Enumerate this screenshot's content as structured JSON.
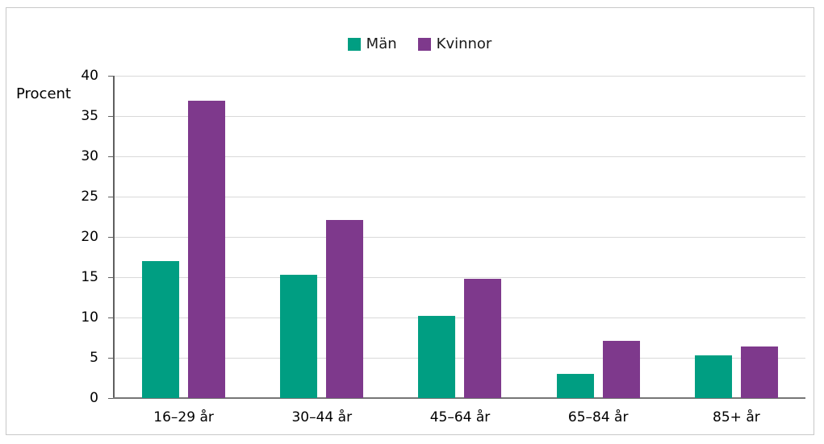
{
  "chart_data": {
    "type": "bar",
    "title": "",
    "ylabel": "Procent",
    "xlabel": "",
    "categories": [
      "16–29 år",
      "30–44 år",
      "45–64 år",
      "65–84 år",
      "85+ år"
    ],
    "series": [
      {
        "name": "Män",
        "color": "#009e82",
        "values": [
          17.0,
          15.3,
          10.2,
          3.0,
          5.3
        ]
      },
      {
        "name": "Kvinnor",
        "color": "#7e398c",
        "values": [
          36.9,
          22.1,
          14.8,
          7.1,
          6.4
        ]
      }
    ],
    "ylim": [
      0,
      40
    ],
    "ytick_step": 5,
    "yticks": [
      0,
      5,
      10,
      15,
      20,
      25,
      30,
      35,
      40
    ],
    "grid": true,
    "legend_position": "top-center",
    "colors": {
      "gridline": "#d9d9d9",
      "axis": "#5f5f5f",
      "bottom_axis": "#767676",
      "frame_border": "#c8c8c8",
      "text": "#000000"
    }
  }
}
